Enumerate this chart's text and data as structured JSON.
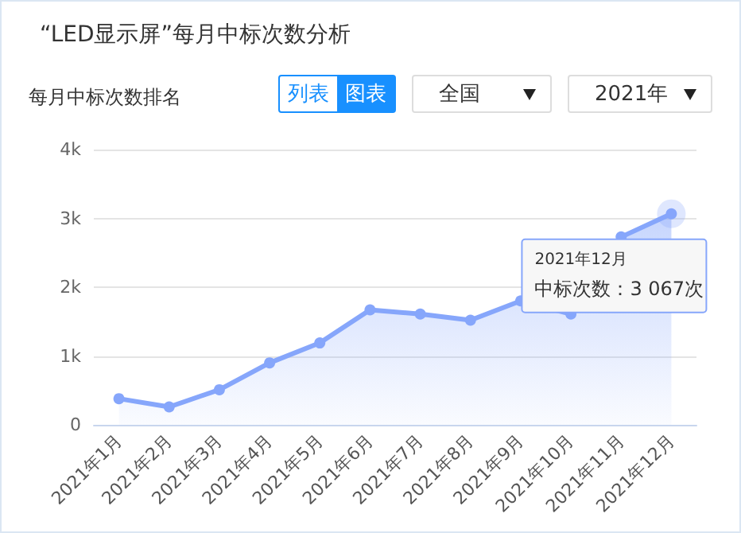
{
  "chart_data": {
    "type": "area",
    "title": "“LED显示屏”每月中标次数分析",
    "subtitle": "每月中标次数排名",
    "categories": [
      "2021年1月",
      "2021年2月",
      "2021年3月",
      "2021年4月",
      "2021年5月",
      "2021年6月",
      "2021年7月",
      "2021年8月",
      "2021年9月",
      "2021年10月",
      "2021年11月",
      "2021年12月"
    ],
    "series": [
      {
        "color": "#86a6fb",
        "values": [
          380,
          260,
          510,
          900,
          1190,
          1670,
          1610,
          1520,
          1800,
          1610,
          2730,
          3067
        ]
      }
    ],
    "ylim": [
      0,
      4000
    ],
    "yticks": [
      0,
      {
        "value": 1000,
        "label": "1k"
      },
      {
        "value": 2000,
        "label": "2k"
      },
      {
        "value": 3000,
        "label": "3k"
      },
      {
        "value": 4000,
        "label": "4k"
      }
    ],
    "grid": "y",
    "marker": "circle",
    "annotations": [
      "列表",
      "图表",
      "全国",
      "2021年",
      "2021年12月",
      "中标次数：3 067次"
    ]
  }
}
